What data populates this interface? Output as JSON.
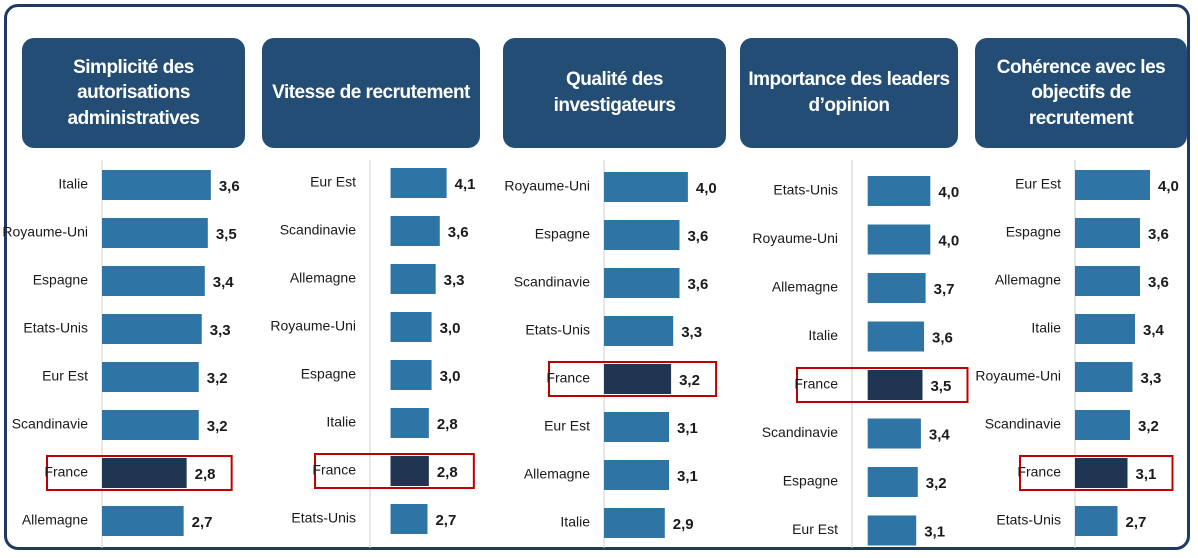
{
  "chart_data": [
    {
      "type": "bar",
      "orientation": "horizontal",
      "title": "Simplicité des autorisations administratives",
      "categories": [
        "Italie",
        "Royaume-Uni",
        "Espagne",
        "Etats-Unis",
        "Eur Est",
        "Scandinavie",
        "France",
        "Allemagne"
      ],
      "values": [
        3.6,
        3.5,
        3.4,
        3.3,
        3.2,
        3.2,
        2.8,
        2.7
      ],
      "value_labels": [
        "3,6",
        "3,5",
        "3,4",
        "3,3",
        "3,2",
        "3,2",
        "2,8",
        "2,7"
      ],
      "colors": [
        "#2e75a6",
        "#2e75a6",
        "#2e75a6",
        "#2e75a6",
        "#2e75a6",
        "#2e75a6",
        "#1f3552",
        "#2e75a6"
      ],
      "bar_outlines": [
        null,
        null,
        null,
        null,
        null,
        null,
        "#c00000",
        null
      ],
      "xlim": [
        0,
        4.3
      ]
    },
    {
      "type": "bar",
      "orientation": "horizontal",
      "title": "Vitesse de recrutement",
      "categories": [
        "Eur Est",
        "Scandinavie",
        "Allemagne",
        "Royaume-Uni",
        "Espagne",
        "Italie",
        "France",
        "Etats-Unis"
      ],
      "values": [
        4.1,
        3.6,
        3.3,
        3.0,
        3.0,
        2.8,
        2.8,
        2.7
      ],
      "value_labels": [
        "4,1",
        "3,6",
        "3,3",
        "3,0",
        "3,0",
        "2,8",
        "2,8",
        "2,7"
      ],
      "colors": [
        "#2e75a6",
        "#2e75a6",
        "#2e75a6",
        "#2e75a6",
        "#2e75a6",
        "#2e75a6",
        "#1f3552",
        "#2e75a6"
      ],
      "bar_outlines": [
        null,
        null,
        null,
        null,
        null,
        null,
        "#c00000",
        null
      ],
      "xlim": [
        -1.5,
        8
      ]
    },
    {
      "type": "bar",
      "orientation": "horizontal",
      "title": "Qualité des investigateurs",
      "categories": [
        "Royaume-Uni",
        "Espagne",
        "Scandinavie",
        "Etats-Unis",
        "France",
        "Eur Est",
        "Allemagne",
        "Italie"
      ],
      "values": [
        4.0,
        3.6,
        3.6,
        3.3,
        3.2,
        3.1,
        3.1,
        2.9
      ],
      "value_labels": [
        "4,0",
        "3,6",
        "3,6",
        "3,3",
        "3,2",
        "3,1",
        "3,1",
        "2,9"
      ],
      "colors": [
        "#2e75a6",
        "#2e75a6",
        "#2e75a6",
        "#2e75a6",
        "#1f3552",
        "#2e75a6",
        "#2e75a6",
        "#2e75a6"
      ],
      "bar_outlines": [
        null,
        null,
        null,
        null,
        "#c00000",
        null,
        null,
        null
      ],
      "xlim": [
        0,
        6.2
      ]
    },
    {
      "type": "bar",
      "orientation": "horizontal",
      "title": "Importance des leaders d’opinion",
      "categories": [
        "Etats-Unis",
        "Royaume-Uni",
        "Allemagne",
        "Italie",
        "France",
        "Scandinavie",
        "Espagne",
        "Eur Est"
      ],
      "values": [
        4.0,
        4.0,
        3.7,
        3.6,
        3.5,
        3.4,
        3.2,
        3.1
      ],
      "value_labels": [
        "4,0",
        "4,0",
        "3,7",
        "3,6",
        "3,5",
        "3,4",
        "3,2",
        "3,1"
      ],
      "colors": [
        "#2e75a6",
        "#2e75a6",
        "#2e75a6",
        "#2e75a6",
        "#1f3552",
        "#2e75a6",
        "#2e75a6",
        "#2e75a6"
      ],
      "bar_outlines": [
        null,
        null,
        null,
        null,
        "#c00000",
        null,
        null,
        null
      ],
      "xlim": [
        -1,
        7.3
      ]
    },
    {
      "type": "bar",
      "orientation": "horizontal",
      "title": "Cohérence avec les objectifs de recrutement",
      "categories": [
        "Eur Est",
        "Espagne",
        "Allemagne",
        "Italie",
        "Royaume-Uni",
        "Scandinavie",
        "France",
        "Etats-Unis"
      ],
      "values": [
        4.0,
        3.6,
        3.6,
        3.4,
        3.3,
        3.2,
        3.1,
        2.7
      ],
      "value_labels": [
        "4,0",
        "3,6",
        "3,6",
        "3,4",
        "3,3",
        "3,2",
        "3,1",
        "2,7"
      ],
      "colors": [
        "#2e75a6",
        "#2e75a6",
        "#2e75a6",
        "#2e75a6",
        "#2e75a6",
        "#2e75a6",
        "#1f3552",
        "#2e75a6"
      ],
      "bar_outlines": [
        null,
        null,
        null,
        null,
        null,
        null,
        "#c00000",
        null
      ],
      "xlim": [
        1,
        6.2
      ]
    }
  ]
}
